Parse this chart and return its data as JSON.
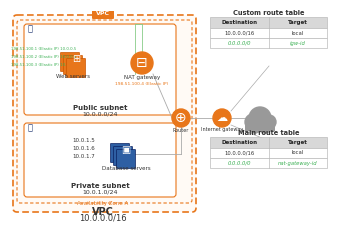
{
  "bg_color": "#ffffff",
  "orange": "#E8761A",
  "dark_blue": "#1F3570",
  "mid_blue": "#2E5FA3",
  "gray_cloud": "#999999",
  "green_text": "#3CB054",
  "table_header_bg": "#D8D8D8",
  "table_border": "#BBBBBB",
  "vpc_label": "VPC",
  "vpc_cidr": "10.0.0.0/16",
  "az_label": "Availability Zone A",
  "public_subnet_label": "Public subnet",
  "public_subnet_cidr": "10.0.0.0/24",
  "private_subnet_label": "Private subnet",
  "private_subnet_cidr": "10.0.1.0/24",
  "web_servers_label": "Web servers",
  "web_ips": [
    "198.51.100.1 (Elastic IP) 10.0.0.5",
    "198.51.100.2 (Elastic IP) 10.0.0.6",
    "198.51.100.3 (Elastic IP) 10.0.0.7"
  ],
  "nat_label": "NAT gateway",
  "nat_ip": "198.51.100.4 (Elastic IP)",
  "db_label": "Database servers",
  "db_ips": [
    "10.0.1.5",
    "10.0.1.6",
    "10.0.1.7"
  ],
  "router_label": "Router",
  "igw_label": "Internet gateway",
  "custom_table_title": "Custom route table",
  "custom_table_col1": "Destination",
  "custom_table_col2": "Target",
  "custom_table_rows": [
    [
      "10.0.0.0/16",
      "local"
    ],
    [
      "0.0.0.0/0",
      "igw-id"
    ]
  ],
  "main_table_title": "Main route table",
  "main_table_rows": [
    [
      "10.0.0.0/16",
      "local"
    ],
    [
      "0.0.0.0/0",
      "nat-gateway-id"
    ]
  ]
}
